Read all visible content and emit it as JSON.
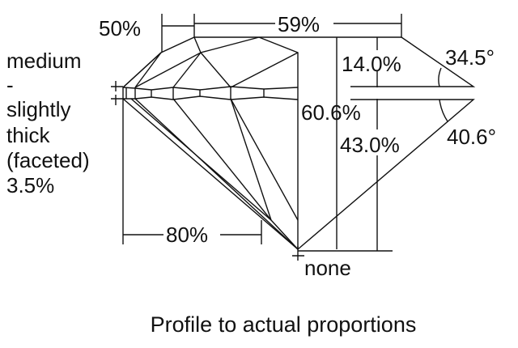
{
  "girdle_label": [
    "medium",
    "-",
    "slightly",
    "thick",
    "(faceted)",
    "3.5%"
  ],
  "measurements": {
    "crown_length": "50%",
    "table": "59%",
    "crown_height": "14.0%",
    "crown_angle": "34.5°",
    "total_depth": "60.6%",
    "pavilion_depth": "43.0%",
    "pavilion_angle": "40.6°",
    "lower_half_length": "80%",
    "culet": "none"
  },
  "caption": "Profile to actual proportions"
}
